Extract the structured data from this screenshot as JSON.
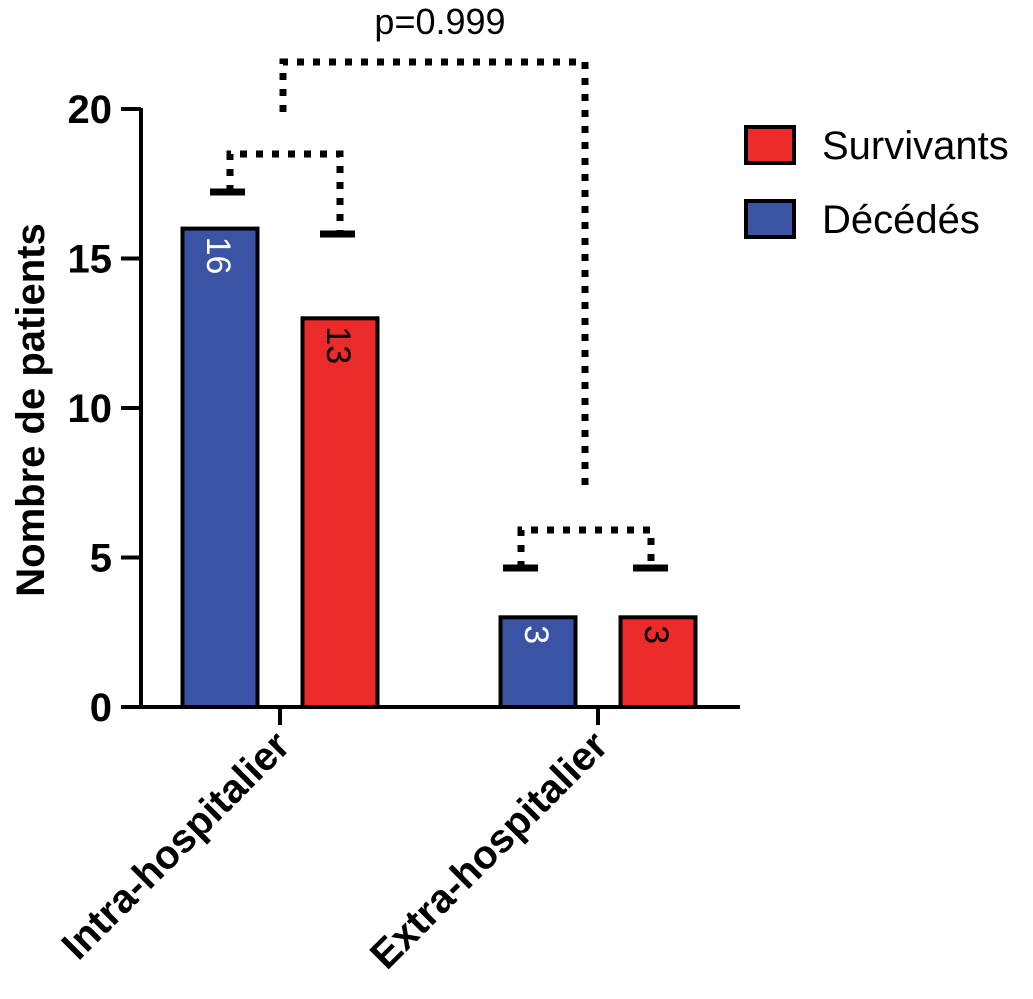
{
  "chart_data": {
    "type": "bar",
    "ylabel": "Nombre de patients",
    "ylim": [
      0,
      20
    ],
    "yticks": [
      0,
      5,
      10,
      15,
      20
    ],
    "categories": [
      "Intra-hospitalier",
      "Extra-hospitalier"
    ],
    "series": [
      {
        "name": "Décédés",
        "color": "#3a53a4",
        "values": [
          16,
          3
        ]
      },
      {
        "name": "Survivants",
        "color": "#ec2a2a",
        "values": [
          13,
          3
        ]
      }
    ],
    "legend_order": [
      1,
      0
    ],
    "legend_position": "top-right",
    "data_labels": [
      "16",
      "13",
      "3",
      "3"
    ],
    "annotation": {
      "text": "p=0.999"
    },
    "grid": false
  }
}
